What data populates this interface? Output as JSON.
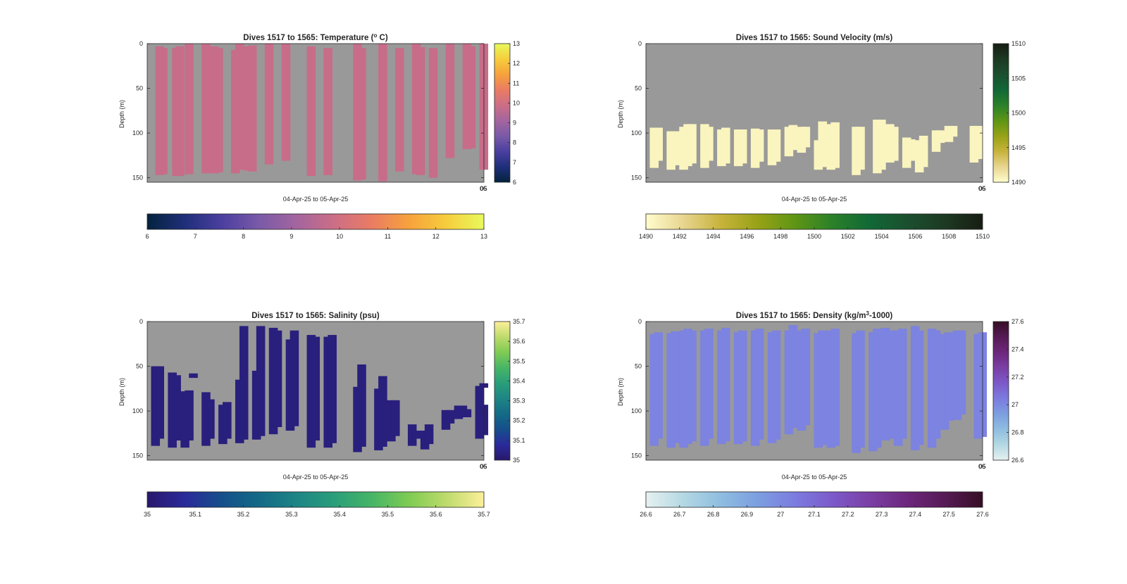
{
  "colormaps": {
    "thermal": [
      "#03233d",
      "#1f2f7a",
      "#4b3fa0",
      "#7a5aa8",
      "#a4659e",
      "#cc6e86",
      "#ea7c63",
      "#f7a23c",
      "#f6cd3d",
      "#e8fa5b"
    ],
    "speed": [
      "#fffdcd",
      "#e8d58f",
      "#c7b33b",
      "#97a216",
      "#5d9515",
      "#2a8029",
      "#116836",
      "#1b4f2e",
      "#1d3923",
      "#171d13"
    ],
    "haline": [
      "#29186b",
      "#2a2a9a",
      "#154f8b",
      "#146a86",
      "#1e8585",
      "#2a9e7a",
      "#47b566",
      "#7fcb53",
      "#bedb6c",
      "#fdef9a"
    ],
    "dense": [
      "#e6f1f1",
      "#b4d8e3",
      "#8fbde0",
      "#7c9ee0",
      "#7c7be0",
      "#7c59c9",
      "#7a3ea4",
      "#6c277c",
      "#561a55",
      "#360e24"
    ]
  },
  "charts": [
    {
      "title": "Dives 1517 to 1565: Temperature (",
      "title_sup": "o",
      "title_post": " C)",
      "xlabel": "04-Apr-25 to 05-Apr-25",
      "ylabel": "Depth (m)",
      "x_ticklabel_overlap": [
        "06",
        "05"
      ],
      "background": "#999999",
      "cmap": "thermal",
      "clim": [
        6,
        13
      ],
      "yticks": [
        0,
        50,
        100,
        150
      ],
      "ylim": [
        0,
        155
      ],
      "v_colorbar_ticks": [
        "13",
        "12",
        "11",
        "10",
        "9",
        "8",
        "7",
        "6"
      ],
      "h_colorbar_ticks": [
        "6",
        "7",
        "8",
        "9",
        "10",
        "11",
        "12",
        "13"
      ],
      "chart_data": {
        "type": "heatmap",
        "x_unit": "dive column",
        "y_unit": "depth (m)",
        "color_value": 9.8,
        "profiles": [
          {
            "x": 1.0,
            "top": 3,
            "bottom": 147
          },
          {
            "x": 1.4,
            "top": 5,
            "bottom": 146
          },
          {
            "x": 3.0,
            "top": 5,
            "bottom": 148
          },
          {
            "x": 3.4,
            "top": 3,
            "bottom": 148
          },
          {
            "x": 4.5,
            "top": 0,
            "bottom": 146
          },
          {
            "x": 6.5,
            "top": 0,
            "bottom": 145
          },
          {
            "x": 7.5,
            "top": 3,
            "bottom": 145
          },
          {
            "x": 8.0,
            "top": 5,
            "bottom": 144
          },
          {
            "x": 10.0,
            "top": 7,
            "bottom": 145
          },
          {
            "x": 10.5,
            "top": 0,
            "bottom": 141
          },
          {
            "x": 11.5,
            "top": 3,
            "bottom": 142
          },
          {
            "x": 12.0,
            "top": 2,
            "bottom": 143
          },
          {
            "x": 14.0,
            "top": 0,
            "bottom": 135
          },
          {
            "x": 16.0,
            "top": 0,
            "bottom": 131
          },
          {
            "x": 19.0,
            "top": 3,
            "bottom": 148
          },
          {
            "x": 21.0,
            "top": 5,
            "bottom": 147
          },
          {
            "x": 24.5,
            "top": 0,
            "bottom": 153
          },
          {
            "x": 25.0,
            "top": 5,
            "bottom": 152
          },
          {
            "x": 27.5,
            "top": 0,
            "bottom": 154
          },
          {
            "x": 29.5,
            "top": 5,
            "bottom": 143
          },
          {
            "x": 31.5,
            "top": 0,
            "bottom": 146
          },
          {
            "x": 32.0,
            "top": 4,
            "bottom": 147
          },
          {
            "x": 33.5,
            "top": 5,
            "bottom": 150
          },
          {
            "x": 35.5,
            "top": 0,
            "bottom": 128
          },
          {
            "x": 37.5,
            "top": 0,
            "bottom": 118
          },
          {
            "x": 38.0,
            "top": 3,
            "bottom": 117
          },
          {
            "x": 39.5,
            "top": 0,
            "bottom": 141
          }
        ]
      }
    },
    {
      "title": "Dives 1517 to 1565: Sound Velocity (m/s)",
      "title_sup": "",
      "title_post": "",
      "xlabel": "04-Apr-25 to 05-Apr-25",
      "ylabel": "Depth (m)",
      "x_ticklabel_overlap": [
        "06",
        "05"
      ],
      "background": "#999999",
      "cmap": "speed",
      "clim": [
        1490,
        1510
      ],
      "yticks": [
        0,
        50,
        100,
        150
      ],
      "ylim": [
        0,
        155
      ],
      "v_colorbar_ticks": [
        "1510",
        "1505",
        "1500",
        "1495",
        "1490"
      ],
      "h_colorbar_ticks": [
        "1490",
        "1492",
        "1494",
        "1496",
        "1498",
        "1500",
        "1502",
        "1504",
        "1506",
        "1508",
        "1510"
      ],
      "chart_data": {
        "type": "heatmap",
        "x_unit": "dive column",
        "y_unit": "depth (m)",
        "color_value": 1490.5,
        "profiles": [
          {
            "x": 0.5,
            "top": 94,
            "bottom": 139
          },
          {
            "x": 1.0,
            "top": 94,
            "bottom": 131
          },
          {
            "x": 2.5,
            "top": 98,
            "bottom": 141
          },
          {
            "x": 3.0,
            "top": 98,
            "bottom": 136
          },
          {
            "x": 4.0,
            "top": 93,
            "bottom": 141
          },
          {
            "x": 4.5,
            "top": 90,
            "bottom": 137
          },
          {
            "x": 5.0,
            "top": 90,
            "bottom": 134
          },
          {
            "x": 6.5,
            "top": 90,
            "bottom": 139
          },
          {
            "x": 7.0,
            "top": 93,
            "bottom": 131
          },
          {
            "x": 8.5,
            "top": 96,
            "bottom": 137
          },
          {
            "x": 9.0,
            "top": 94,
            "bottom": 134
          },
          {
            "x": 10.5,
            "top": 96,
            "bottom": 137
          },
          {
            "x": 11.0,
            "top": 96,
            "bottom": 134
          },
          {
            "x": 12.5,
            "top": 95,
            "bottom": 139
          },
          {
            "x": 13.0,
            "top": 96,
            "bottom": 132
          },
          {
            "x": 14.5,
            "top": 96,
            "bottom": 136
          },
          {
            "x": 15.0,
            "top": 96,
            "bottom": 132
          },
          {
            "x": 16.5,
            "top": 93,
            "bottom": 126
          },
          {
            "x": 17.0,
            "top": 91,
            "bottom": 119
          },
          {
            "x": 18.0,
            "top": 93,
            "bottom": 122
          },
          {
            "x": 18.5,
            "top": 93,
            "bottom": 116
          },
          {
            "x": 20.0,
            "top": 108,
            "bottom": 141
          },
          {
            "x": 20.5,
            "top": 88,
            "bottom": 138
          },
          {
            "x": 21.5,
            "top": 90,
            "bottom": 141
          },
          {
            "x": 22.0,
            "top": 88,
            "bottom": 139
          },
          {
            "x": 24.5,
            "top": 93,
            "bottom": 147
          },
          {
            "x": 25.0,
            "top": 93,
            "bottom": 141
          },
          {
            "x": 27.0,
            "top": 85,
            "bottom": 145
          },
          {
            "x": 27.5,
            "top": 85,
            "bottom": 141
          },
          {
            "x": 28.5,
            "top": 90,
            "bottom": 133
          },
          {
            "x": 29.0,
            "top": 93,
            "bottom": 131
          },
          {
            "x": 30.5,
            "top": 105,
            "bottom": 139
          },
          {
            "x": 31.0,
            "top": 107,
            "bottom": 131
          },
          {
            "x": 32.0,
            "top": 108,
            "bottom": 144
          },
          {
            "x": 32.5,
            "top": 103,
            "bottom": 138
          },
          {
            "x": 34.0,
            "top": 97,
            "bottom": 121
          },
          {
            "x": 34.5,
            "top": 97,
            "bottom": 111
          },
          {
            "x": 35.5,
            "top": 92,
            "bottom": 110
          },
          {
            "x": 36.0,
            "top": 92,
            "bottom": 104
          },
          {
            "x": 38.5,
            "top": 92,
            "bottom": 133
          },
          {
            "x": 39.0,
            "top": 92,
            "bottom": 129
          }
        ],
        "blobs": [
          {
            "x": 20.5,
            "top": 87,
            "bottom": 92
          },
          {
            "x": 20.5,
            "top": 95,
            "bottom": 99
          }
        ]
      }
    },
    {
      "title": "Dives 1517 to 1565: Salinity (psu)",
      "title_sup": "",
      "title_post": "",
      "xlabel": "04-Apr-25 to 05-Apr-25",
      "ylabel": "Depth (m)",
      "x_ticklabel_overlap": [
        "06",
        "05"
      ],
      "background": "#999999",
      "cmap": "haline",
      "clim": [
        35,
        35.7
      ],
      "yticks": [
        0,
        50,
        100,
        150
      ],
      "ylim": [
        0,
        155
      ],
      "v_colorbar_ticks": [
        "35.7",
        "35.6",
        "35.5",
        "35.4",
        "35.3",
        "35.2",
        "35.1",
        "35"
      ],
      "h_colorbar_ticks": [
        "35",
        "35.1",
        "35.2",
        "35.3",
        "35.4",
        "35.5",
        "35.6",
        "35.7"
      ],
      "chart_data": {
        "type": "heatmap",
        "x_unit": "dive column",
        "y_unit": "depth (m)",
        "color_value": 35.03,
        "profiles": [
          {
            "x": 0.5,
            "top": 50,
            "bottom": 139
          },
          {
            "x": 1.0,
            "top": 50,
            "bottom": 131
          },
          {
            "x": 2.5,
            "top": 57,
            "bottom": 141
          },
          {
            "x": 3.0,
            "top": 60,
            "bottom": 133
          },
          {
            "x": 4.0,
            "top": 78,
            "bottom": 141
          },
          {
            "x": 4.5,
            "top": 77,
            "bottom": 133
          },
          {
            "x": 6.5,
            "top": 79,
            "bottom": 139
          },
          {
            "x": 7.0,
            "top": 87,
            "bottom": 131
          },
          {
            "x": 8.5,
            "top": 93,
            "bottom": 137
          },
          {
            "x": 9.0,
            "top": 90,
            "bottom": 131
          },
          {
            "x": 10.5,
            "top": 65,
            "bottom": 136
          },
          {
            "x": 11.0,
            "top": 5,
            "bottom": 132
          },
          {
            "x": 12.5,
            "top": 55,
            "bottom": 132
          },
          {
            "x": 13.0,
            "top": 5,
            "bottom": 128
          },
          {
            "x": 14.5,
            "top": 7,
            "bottom": 126
          },
          {
            "x": 15.0,
            "top": 10,
            "bottom": 118
          },
          {
            "x": 16.5,
            "top": 20,
            "bottom": 122
          },
          {
            "x": 17.0,
            "top": 10,
            "bottom": 117
          },
          {
            "x": 19.0,
            "top": 15,
            "bottom": 141
          },
          {
            "x": 19.5,
            "top": 17,
            "bottom": 133
          },
          {
            "x": 21.0,
            "top": 17,
            "bottom": 141
          },
          {
            "x": 21.5,
            "top": 15,
            "bottom": 136
          },
          {
            "x": 24.5,
            "top": 73,
            "bottom": 146
          },
          {
            "x": 25.0,
            "top": 48,
            "bottom": 140
          },
          {
            "x": 27.0,
            "top": 75,
            "bottom": 144
          },
          {
            "x": 27.5,
            "top": 61,
            "bottom": 140
          },
          {
            "x": 28.5,
            "top": 88,
            "bottom": 134
          },
          {
            "x": 29.0,
            "top": 88,
            "bottom": 128
          },
          {
            "x": 31.0,
            "top": 115,
            "bottom": 139
          },
          {
            "x": 31.5,
            "top": 122,
            "bottom": 131
          },
          {
            "x": 32.5,
            "top": 122,
            "bottom": 143
          },
          {
            "x": 33.0,
            "top": 115,
            "bottom": 137
          },
          {
            "x": 35.0,
            "top": 99,
            "bottom": 121
          },
          {
            "x": 35.5,
            "top": 99,
            "bottom": 114
          },
          {
            "x": 36.5,
            "top": 94,
            "bottom": 109
          },
          {
            "x": 37.0,
            "top": 94,
            "bottom": 103
          },
          {
            "x": 37.5,
            "top": 98,
            "bottom": 107
          },
          {
            "x": 39.0,
            "top": 72,
            "bottom": 131
          },
          {
            "x": 39.5,
            "top": 93,
            "bottom": 127
          }
        ],
        "blobs": [
          {
            "x": 5.0,
            "top": 58,
            "bottom": 63
          },
          {
            "x": 39.5,
            "top": 69,
            "bottom": 74
          }
        ]
      }
    },
    {
      "title": "Dives 1517 to 1565: Density (kg/m",
      "title_sup": "3",
      "title_post": "-1000)",
      "xlabel": "04-Apr-25 to 05-Apr-25",
      "ylabel": "Depth (m)",
      "x_ticklabel_overlap": [
        "06",
        "05"
      ],
      "background": "#999999",
      "cmap": "dense",
      "clim": [
        26.6,
        27.6
      ],
      "yticks": [
        0,
        50,
        100,
        150
      ],
      "ylim": [
        0,
        155
      ],
      "v_colorbar_ticks": [
        "27.6",
        "27.4",
        "27.2",
        "27",
        "26.8",
        "26.6"
      ],
      "h_colorbar_ticks": [
        "26.6",
        "26.7",
        "26.8",
        "26.9",
        "27",
        "27.1",
        "27.2",
        "27.3",
        "27.4",
        "27.5",
        "27.6"
      ],
      "chart_data": {
        "type": "heatmap",
        "x_unit": "dive column",
        "y_unit": "depth (m)",
        "color_value": 27.02,
        "profiles": [
          {
            "x": 0.5,
            "top": 14,
            "bottom": 139
          },
          {
            "x": 1.0,
            "top": 12,
            "bottom": 131
          },
          {
            "x": 2.5,
            "top": 13,
            "bottom": 141
          },
          {
            "x": 3.0,
            "top": 11,
            "bottom": 136
          },
          {
            "x": 4.0,
            "top": 10,
            "bottom": 141
          },
          {
            "x": 4.5,
            "top": 8,
            "bottom": 137
          },
          {
            "x": 5.0,
            "top": 10,
            "bottom": 134
          },
          {
            "x": 6.5,
            "top": 10,
            "bottom": 139
          },
          {
            "x": 7.0,
            "top": 8,
            "bottom": 131
          },
          {
            "x": 8.5,
            "top": 10,
            "bottom": 137
          },
          {
            "x": 9.0,
            "top": 7,
            "bottom": 134
          },
          {
            "x": 10.5,
            "top": 12,
            "bottom": 137
          },
          {
            "x": 11.0,
            "top": 10,
            "bottom": 134
          },
          {
            "x": 12.5,
            "top": 10,
            "bottom": 139
          },
          {
            "x": 13.0,
            "top": 8,
            "bottom": 132
          },
          {
            "x": 14.5,
            "top": 12,
            "bottom": 136
          },
          {
            "x": 15.0,
            "top": 10,
            "bottom": 132
          },
          {
            "x": 16.5,
            "top": 10,
            "bottom": 126
          },
          {
            "x": 17.0,
            "top": 4,
            "bottom": 119
          },
          {
            "x": 18.0,
            "top": 10,
            "bottom": 122
          },
          {
            "x": 18.5,
            "top": 8,
            "bottom": 116
          },
          {
            "x": 20.0,
            "top": 13,
            "bottom": 141
          },
          {
            "x": 20.5,
            "top": 10,
            "bottom": 138
          },
          {
            "x": 21.5,
            "top": 10,
            "bottom": 141
          },
          {
            "x": 22.0,
            "top": 8,
            "bottom": 139
          },
          {
            "x": 24.5,
            "top": 13,
            "bottom": 147
          },
          {
            "x": 25.0,
            "top": 10,
            "bottom": 141
          },
          {
            "x": 26.5,
            "top": 12,
            "bottom": 145
          },
          {
            "x": 27.0,
            "top": 8,
            "bottom": 141
          },
          {
            "x": 28.0,
            "top": 7,
            "bottom": 133
          },
          {
            "x": 28.5,
            "top": 10,
            "bottom": 131
          },
          {
            "x": 29.5,
            "top": 10,
            "bottom": 139
          },
          {
            "x": 30.0,
            "top": 8,
            "bottom": 131
          },
          {
            "x": 31.5,
            "top": 5,
            "bottom": 144
          },
          {
            "x": 32.0,
            "top": 10,
            "bottom": 138
          },
          {
            "x": 33.5,
            "top": 8,
            "bottom": 141
          },
          {
            "x": 34.0,
            "top": 10,
            "bottom": 131
          },
          {
            "x": 35.0,
            "top": 14,
            "bottom": 121
          },
          {
            "x": 35.5,
            "top": 12,
            "bottom": 111
          },
          {
            "x": 36.5,
            "top": 10,
            "bottom": 110
          },
          {
            "x": 37.0,
            "top": 10,
            "bottom": 104
          },
          {
            "x": 39.0,
            "top": 14,
            "bottom": 131
          },
          {
            "x": 39.5,
            "top": 12,
            "bottom": 129
          }
        ]
      }
    }
  ]
}
